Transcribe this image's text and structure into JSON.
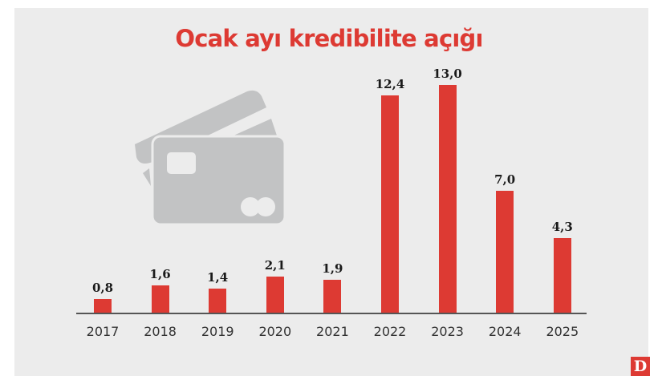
{
  "title": "Ocak ayı kredibilite açığı",
  "logo": "D",
  "colors": {
    "bar": "#dd3a33",
    "title": "#dd3a33",
    "background": "#ececec",
    "icon": "#c2c3c4",
    "axis": "#555555"
  },
  "icon": "credit-card-icon",
  "chart_data": {
    "type": "bar",
    "title": "Ocak ayı kredibilite açığı",
    "xlabel": "",
    "ylabel": "",
    "categories": [
      "2017",
      "2018",
      "2019",
      "2020",
      "2021",
      "2022",
      "2023",
      "2024",
      "2025"
    ],
    "values": [
      0.8,
      1.6,
      1.4,
      2.1,
      1.9,
      12.4,
      13.0,
      7.0,
      4.3
    ],
    "value_labels": [
      "0,8",
      "1,6",
      "1,4",
      "2,1",
      "1,9",
      "12,4",
      "13,0",
      "7,0",
      "4,3"
    ],
    "ylim": [
      0,
      13.0
    ],
    "grid": false,
    "legend": null
  }
}
